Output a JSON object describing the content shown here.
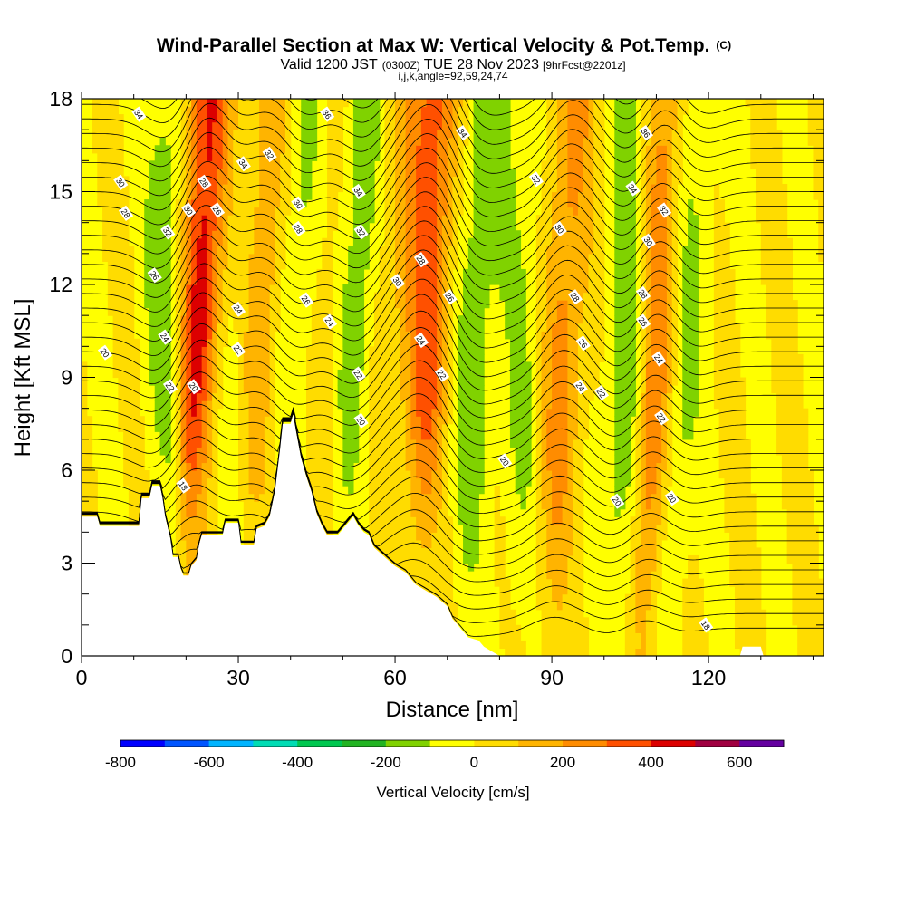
{
  "chart_data": {
    "type": "heatmap",
    "title": "Wind-Parallel Section at Max W: Vertical Velocity & Pot.Temp.",
    "title_mark": "(C)",
    "subtitle_parts": [
      "Valid 1200 JST",
      "(0300Z)",
      "TUE 28 Nov 2023",
      "[9hrFcst@2201z]"
    ],
    "subtitle2": "i,j,k,angle=92,59,24,74",
    "xlabel": "Distance [nm]",
    "ylabel": "Height [Kft MSL]",
    "xlim": [
      0,
      142
    ],
    "ylim": [
      0,
      18
    ],
    "x_ticks": [
      0,
      30,
      60,
      90,
      120
    ],
    "x_tick_labels": [
      "0",
      "30",
      "60",
      "90",
      "120"
    ],
    "y_ticks": [
      0,
      3,
      6,
      9,
      12,
      15,
      18
    ],
    "y_tick_labels": [
      "0",
      "3",
      "6",
      "9",
      "12",
      "15",
      "18"
    ],
    "colorbar": {
      "title": "Vertical Velocity [cm/s]",
      "min": -800,
      "max": 700,
      "step": 100,
      "tick_values": [
        -800,
        -600,
        -400,
        -200,
        0,
        200,
        400,
        600
      ],
      "tick_labels": [
        "-800",
        "-600",
        "-400",
        "-200",
        "0",
        "200",
        "400",
        "600"
      ],
      "colors": [
        "#0000ff",
        "#0055ff",
        "#00b4ff",
        "#00dcb4",
        "#00c850",
        "#22b422",
        "#80d200",
        "#ffff00",
        "#ffdc00",
        "#ffb400",
        "#ff8c00",
        "#ff5000",
        "#dc0000",
        "#a00040",
        "#6400a0"
      ]
    },
    "wave_bands": [
      {
        "x": 16,
        "sign": "down",
        "peak_cms": -250
      },
      {
        "x": 21,
        "sign": "up",
        "peak_cms": 520
      },
      {
        "x": 29,
        "sign": "down",
        "peak_cms": -130
      },
      {
        "x": 33,
        "sign": "up",
        "peak_cms": 250
      },
      {
        "x": 41,
        "sign": "down",
        "peak_cms": -260
      },
      {
        "x": 44,
        "sign": "up",
        "peak_cms": 200
      },
      {
        "x": 52,
        "sign": "down",
        "peak_cms": -240
      },
      {
        "x": 56,
        "sign": "up",
        "peak_cms": 150
      },
      {
        "x": 65,
        "sign": "up",
        "peak_cms": 360
      },
      {
        "x": 74,
        "sign": "down",
        "peak_cms": -170
      },
      {
        "x": 84,
        "sign": "down",
        "peak_cms": -110
      },
      {
        "x": 91,
        "sign": "up",
        "peak_cms": 240
      },
      {
        "x": 104,
        "sign": "down",
        "peak_cms": -230
      },
      {
        "x": 109,
        "sign": "up",
        "peak_cms": 400
      },
      {
        "x": 113,
        "sign": "down",
        "peak_cms": -200
      }
    ],
    "terrain_kft": [
      [
        0,
        4.5
      ],
      [
        3,
        4.5
      ],
      [
        3.5,
        4.2
      ],
      [
        11,
        4.2
      ],
      [
        11.5,
        5.1
      ],
      [
        13,
        5.1
      ],
      [
        13.5,
        5.5
      ],
      [
        15,
        5.5
      ],
      [
        15.5,
        5.1
      ],
      [
        16,
        4.5
      ],
      [
        17,
        3.8
      ],
      [
        17.5,
        3.2
      ],
      [
        18.5,
        3.2
      ],
      [
        19,
        2.8
      ],
      [
        19.5,
        2.6
      ],
      [
        20.5,
        2.6
      ],
      [
        21,
        2.9
      ],
      [
        22,
        3.1
      ],
      [
        22.5,
        3.6
      ],
      [
        23,
        3.9
      ],
      [
        27,
        3.9
      ],
      [
        27.5,
        4.3
      ],
      [
        30,
        4.3
      ],
      [
        30.5,
        3.6
      ],
      [
        33,
        3.6
      ],
      [
        33.5,
        4.1
      ],
      [
        35,
        4.2
      ],
      [
        36,
        4.5
      ],
      [
        36.5,
        4.9
      ],
      [
        37,
        5.3
      ],
      [
        37.5,
        6.0
      ],
      [
        38,
        6.7
      ],
      [
        38.5,
        7.5
      ],
      [
        40,
        7.5
      ],
      [
        40.5,
        7.8
      ],
      [
        41,
        7.3
      ],
      [
        42,
        6.4
      ],
      [
        43,
        5.8
      ],
      [
        44,
        5.3
      ],
      [
        45,
        4.6
      ],
      [
        46,
        4.2
      ],
      [
        47,
        3.9
      ],
      [
        49,
        3.9
      ],
      [
        50,
        4.1
      ],
      [
        51,
        4.3
      ],
      [
        52,
        4.5
      ],
      [
        53,
        4.2
      ],
      [
        54,
        4.0
      ],
      [
        55,
        3.9
      ],
      [
        56,
        3.5
      ],
      [
        58,
        3.2
      ],
      [
        60,
        2.9
      ],
      [
        62,
        2.7
      ],
      [
        63,
        2.5
      ],
      [
        64,
        2.3
      ],
      [
        66,
        2.1
      ],
      [
        68,
        1.9
      ],
      [
        70,
        1.6
      ],
      [
        71,
        1.2
      ],
      [
        72,
        1.0
      ],
      [
        73,
        0.8
      ],
      [
        74,
        0.6
      ],
      [
        76,
        0.5
      ],
      [
        77,
        0.3
      ],
      [
        79,
        0.1
      ],
      [
        80,
        0.0
      ],
      [
        126,
        0.0
      ],
      [
        126.5,
        0.3
      ],
      [
        130,
        0.3
      ],
      [
        130.5,
        0.0
      ],
      [
        142,
        0.0
      ]
    ],
    "contour_labels": [
      {
        "x": 11,
        "y": 17.5,
        "text": "34"
      },
      {
        "x": 7.5,
        "y": 15.3,
        "text": "30"
      },
      {
        "x": 8.5,
        "y": 14.3,
        "text": "28"
      },
      {
        "x": 4.5,
        "y": 9.8,
        "text": "20"
      },
      {
        "x": 16.5,
        "y": 13.7,
        "text": "32"
      },
      {
        "x": 14,
        "y": 12.3,
        "text": "26"
      },
      {
        "x": 16,
        "y": 10.3,
        "text": "24"
      },
      {
        "x": 17,
        "y": 8.7,
        "text": "22"
      },
      {
        "x": 19.5,
        "y": 5.5,
        "text": "18"
      },
      {
        "x": 23.5,
        "y": 15.3,
        "text": "28"
      },
      {
        "x": 20.5,
        "y": 14.4,
        "text": "30"
      },
      {
        "x": 26,
        "y": 14.4,
        "text": "26"
      },
      {
        "x": 21.5,
        "y": 8.7,
        "text": "20"
      },
      {
        "x": 31,
        "y": 15.9,
        "text": "34"
      },
      {
        "x": 36,
        "y": 16.2,
        "text": "32"
      },
      {
        "x": 30,
        "y": 11.2,
        "text": "24"
      },
      {
        "x": 30,
        "y": 9.9,
        "text": "22"
      },
      {
        "x": 41.5,
        "y": 14.6,
        "text": "30"
      },
      {
        "x": 41.5,
        "y": 13.8,
        "text": "28"
      },
      {
        "x": 43,
        "y": 11.5,
        "text": "26"
      },
      {
        "x": 47.5,
        "y": 10.8,
        "text": "24"
      },
      {
        "x": 47,
        "y": 17.5,
        "text": "36"
      },
      {
        "x": 53,
        "y": 15.0,
        "text": "34"
      },
      {
        "x": 53.5,
        "y": 13.7,
        "text": "32"
      },
      {
        "x": 53,
        "y": 9.1,
        "text": "22"
      },
      {
        "x": 53.5,
        "y": 7.6,
        "text": "20"
      },
      {
        "x": 60.5,
        "y": 12.1,
        "text": "30"
      },
      {
        "x": 65,
        "y": 12.8,
        "text": "28"
      },
      {
        "x": 70.5,
        "y": 11.6,
        "text": "26"
      },
      {
        "x": 65,
        "y": 10.2,
        "text": "24"
      },
      {
        "x": 69,
        "y": 9.1,
        "text": "22"
      },
      {
        "x": 73,
        "y": 16.9,
        "text": "34"
      },
      {
        "x": 87,
        "y": 15.4,
        "text": "32"
      },
      {
        "x": 81,
        "y": 6.3,
        "text": "20"
      },
      {
        "x": 91.5,
        "y": 13.8,
        "text": "30"
      },
      {
        "x": 94.5,
        "y": 11.6,
        "text": "28"
      },
      {
        "x": 96,
        "y": 10.1,
        "text": "26"
      },
      {
        "x": 95.5,
        "y": 8.7,
        "text": "24"
      },
      {
        "x": 99.5,
        "y": 8.5,
        "text": "22"
      },
      {
        "x": 102.5,
        "y": 5.0,
        "text": "20"
      },
      {
        "x": 105.5,
        "y": 15.1,
        "text": "34"
      },
      {
        "x": 108,
        "y": 16.9,
        "text": "36"
      },
      {
        "x": 111.5,
        "y": 14.4,
        "text": "32"
      },
      {
        "x": 108.5,
        "y": 13.4,
        "text": "30"
      },
      {
        "x": 107.5,
        "y": 11.7,
        "text": "28"
      },
      {
        "x": 107.5,
        "y": 10.8,
        "text": "26"
      },
      {
        "x": 110.5,
        "y": 9.6,
        "text": "24"
      },
      {
        "x": 111,
        "y": 7.7,
        "text": "22"
      },
      {
        "x": 113,
        "y": 5.1,
        "text": "20"
      },
      {
        "x": 119.5,
        "y": 1.0,
        "text": "18"
      }
    ]
  }
}
